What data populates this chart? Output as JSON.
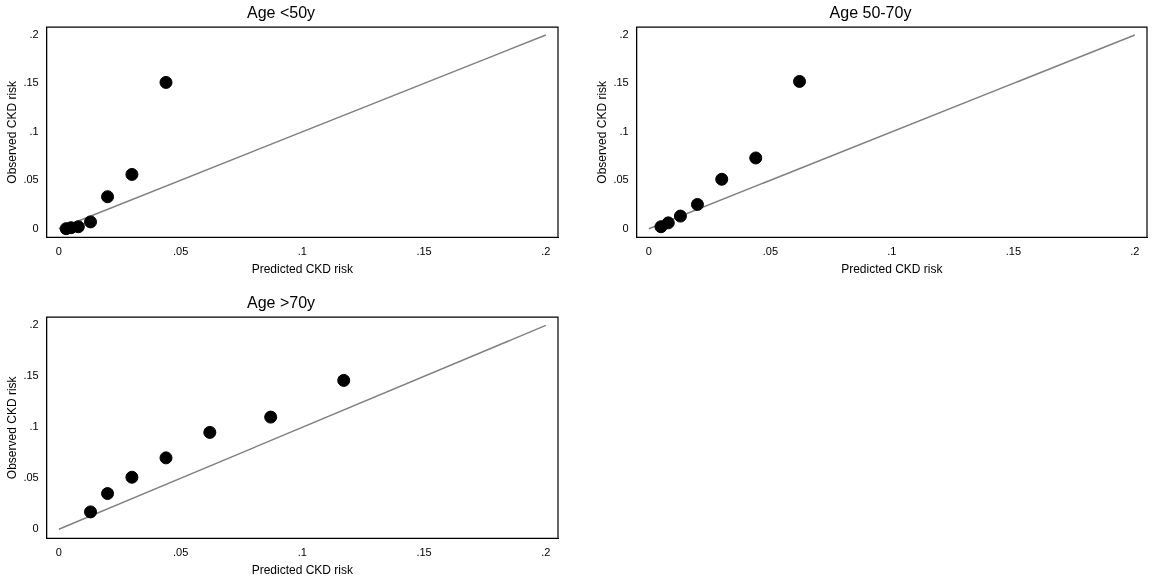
{
  "chart_data": [
    {
      "type": "scatter",
      "title": "Age <50y",
      "xlabel": "Predicted CKD risk",
      "ylabel": "Observed CKD risk",
      "xlim": [
        -0.005,
        0.205
      ],
      "ylim": [
        -0.009,
        0.208
      ],
      "xticks": [
        {
          "value": 0,
          "label": "0"
        },
        {
          "value": 0.05,
          "label": ".05"
        },
        {
          "value": 0.1,
          "label": ".1"
        },
        {
          "value": 0.15,
          "label": ".15"
        },
        {
          "value": 0.2,
          "label": ".2"
        }
      ],
      "yticks": [
        {
          "value": 0,
          "label": "0"
        },
        {
          "value": 0.05,
          "label": ".05"
        },
        {
          "value": 0.1,
          "label": ".1"
        },
        {
          "value": 0.15,
          "label": ".15"
        },
        {
          "value": 0.2,
          "label": ".2"
        }
      ],
      "grid": false,
      "legend": false,
      "marker": "circle",
      "series": [
        {
          "color": "#000000",
          "x": [
            0.003,
            0.005,
            0.008,
            0.013,
            0.02,
            0.03,
            0.044
          ],
          "values": [
            0,
            0.001,
            0.002,
            0.007,
            0.033,
            0.056,
            0.151
          ]
        },
        {
          "type": "line",
          "color": "#808080",
          "line_style": "solid",
          "marker": "none",
          "x": [
            0,
            0.2
          ],
          "values": [
            0,
            0.2
          ]
        }
      ]
    },
    {
      "type": "scatter",
      "title": "Age 50-70y",
      "xlabel": "Predicted CKD risk",
      "ylabel": "Observed CKD risk",
      "xlim": [
        -0.005,
        0.205
      ],
      "ylim": [
        -0.009,
        0.208
      ],
      "xticks": [
        {
          "value": 0,
          "label": "0"
        },
        {
          "value": 0.05,
          "label": ".05"
        },
        {
          "value": 0.1,
          "label": ".1"
        },
        {
          "value": 0.15,
          "label": ".15"
        },
        {
          "value": 0.2,
          "label": ".2"
        }
      ],
      "yticks": [
        {
          "value": 0,
          "label": "0"
        },
        {
          "value": 0.05,
          "label": ".05"
        },
        {
          "value": 0.1,
          "label": ".1"
        },
        {
          "value": 0.15,
          "label": ".15"
        },
        {
          "value": 0.2,
          "label": ".2"
        }
      ],
      "grid": false,
      "legend": false,
      "marker": "circle",
      "series": [
        {
          "color": "#000000",
          "x": [
            0.005,
            0.008,
            0.013,
            0.02,
            0.03,
            0.044,
            0.062
          ],
          "values": [
            0.002,
            0.006,
            0.013,
            0.025,
            0.051,
            0.073,
            0.152
          ]
        },
        {
          "type": "line",
          "color": "#808080",
          "line_style": "solid",
          "marker": "none",
          "x": [
            0,
            0.2
          ],
          "values": [
            0,
            0.2
          ]
        }
      ]
    },
    {
      "type": "scatter",
      "title": "Age >70y",
      "xlabel": "Predicted CKD risk",
      "ylabel": "Observed CKD risk",
      "xlim": [
        -0.005,
        0.205
      ],
      "ylim": [
        -0.009,
        0.208
      ],
      "xticks": [
        {
          "value": 0,
          "label": "0"
        },
        {
          "value": 0.05,
          "label": ".05"
        },
        {
          "value": 0.1,
          "label": ".1"
        },
        {
          "value": 0.15,
          "label": ".15"
        },
        {
          "value": 0.2,
          "label": ".2"
        }
      ],
      "yticks": [
        {
          "value": 0,
          "label": "0"
        },
        {
          "value": 0.05,
          "label": ".05"
        },
        {
          "value": 0.1,
          "label": ".1"
        },
        {
          "value": 0.15,
          "label": ".15"
        },
        {
          "value": 0.2,
          "label": ".2"
        }
      ],
      "grid": false,
      "legend": false,
      "marker": "circle",
      "series": [
        {
          "color": "#000000",
          "x": [
            0.013,
            0.02,
            0.03,
            0.044,
            0.062,
            0.087,
            0.117
          ],
          "values": [
            0.017,
            0.035,
            0.051,
            0.07,
            0.095,
            0.11,
            0.146
          ]
        },
        {
          "type": "line",
          "color": "#808080",
          "line_style": "solid",
          "marker": "none",
          "x": [
            0,
            0.2
          ],
          "values": [
            0,
            0.2
          ]
        }
      ]
    }
  ]
}
